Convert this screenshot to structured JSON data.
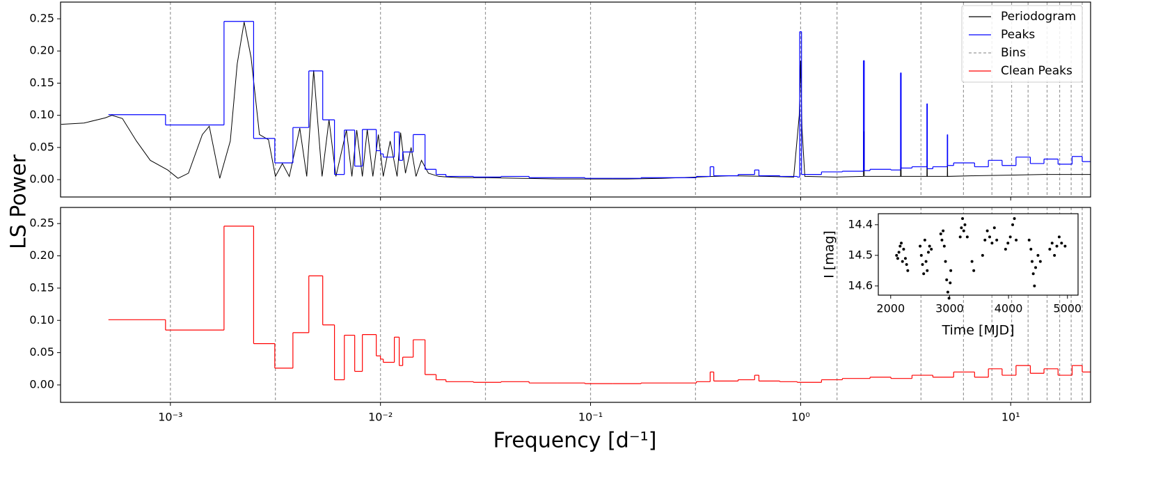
{
  "chart_data": [
    {
      "type": "line",
      "ylabel": "LS Power",
      "legend": "upper right",
      "ylim": [
        -0.027,
        0.276
      ],
      "yticks": [
        {
          "value": 0,
          "label": "0.00"
        },
        {
          "value": 0.05,
          "label": "0.05"
        },
        {
          "value": 0.1,
          "label": "0.10"
        },
        {
          "value": 0.15,
          "label": "0.15"
        },
        {
          "value": 0.2,
          "label": "0.20"
        },
        {
          "value": 0.25,
          "label": "0.25"
        }
      ],
      "bins": {
        "name": "Bins",
        "color": "#999999",
        "values": [
          0.001,
          0.00316,
          0.01,
          0.0316,
          0.1,
          0.316,
          1.0,
          1.49,
          3.74,
          5.96,
          8.14,
          10.1,
          12.1,
          14.9,
          17.1,
          19.4,
          21.9
        ]
      },
      "series": [
        {
          "name": "Periodogram",
          "color": "#000000",
          "x": [
            0.000302,
            0.000388,
            0.000489,
            0.000527,
            0.000591,
            0.000689,
            0.000802,
            0.000971,
            0.001087,
            0.001219,
            0.001419,
            0.001531,
            0.001718,
            0.001928,
            0.00208,
            0.002244,
            0.002421,
            0.002654,
            0.002931,
            0.003162,
            0.003412,
            0.003681,
            0.00413,
            0.004457,
            0.004808,
            0.005272,
            0.005688,
            0.006137,
            0.006887,
            0.00731,
            0.00771,
            0.0082,
            0.00865,
            0.0092,
            0.00977,
            0.01031,
            0.01112,
            0.012,
            0.01247,
            0.01315,
            0.01399,
            0.01476,
            0.01567,
            0.01691,
            0.01897,
            0.0238,
            0.0324,
            0.0473,
            0.0693,
            0.1016,
            0.1486,
            0.2178,
            0.3187,
            0.4667,
            0.6829,
            0.927,
            0.985,
            1.0,
            1.015,
            1.047,
            1.464,
            1.99,
            2.0,
            2.01,
            2.99,
            3.0,
            3.01,
            3.99,
            4.0,
            4.01,
            4.99,
            5.0,
            5.01,
            6.73,
            9.85,
            14.4,
            24.0
          ],
          "values": [
            0.086,
            0.088,
            0.096,
            0.1,
            0.095,
            0.06,
            0.03,
            0.015,
            0.002,
            0.01,
            0.07,
            0.083,
            0.002,
            0.06,
            0.18,
            0.245,
            0.19,
            0.07,
            0.062,
            0.005,
            0.025,
            0.005,
            0.08,
            0.005,
            0.17,
            0.005,
            0.093,
            0.005,
            0.077,
            0.005,
            0.077,
            0.005,
            0.078,
            0.005,
            0.07,
            0.005,
            0.06,
            0.005,
            0.073,
            0.01,
            0.05,
            0.005,
            0.03,
            0.01,
            0.005,
            0.003,
            0.003,
            0.002,
            0.001,
            0.001,
            0.001,
            0.002,
            0.004,
            0.006,
            0.005,
            0.004,
            0.1,
            0.185,
            0.08,
            0.005,
            0.004,
            0.005,
            0.075,
            0.005,
            0.005,
            0.12,
            0.005,
            0.005,
            0.055,
            0.005,
            0.005,
            0.03,
            0.005,
            0.006,
            0.007,
            0.008,
            0.008
          ]
        },
        {
          "name": "Peaks",
          "color": "#0000ff",
          "edges": [
            0.000507,
            0.000948,
            0.0018,
            0.00249,
            0.00314,
            0.00383,
            0.00456,
            0.00531,
            0.00604,
            0.00673,
            0.00754,
            0.0082,
            0.00955,
            0.01,
            0.01031,
            0.01164,
            0.01228,
            0.01276,
            0.01432,
            0.0163,
            0.0184,
            0.0205,
            0.0277,
            0.0375,
            0.051,
            0.0693,
            0.094,
            0.128,
            0.174,
            0.235,
            0.319,
            0.371,
            0.386,
            0.504,
            0.604,
            0.633,
            0.796,
            0.963,
            0.99,
            1.01,
            1.257,
            1.58,
            1.99,
            2.01,
            2.14,
            2.69,
            2.99,
            3.01,
            3.39,
            3.99,
            4.01,
            4.26,
            4.99,
            5.01,
            5.35,
            6.73,
            7.83,
            9.1,
            10.6,
            12.4,
            14.4,
            16.8,
            19.6,
            21.9,
            24.0
          ],
          "values": [
            0.101,
            0.085,
            0.246,
            0.064,
            0.026,
            0.081,
            0.169,
            0.093,
            0.008,
            0.077,
            0.021,
            0.078,
            0.045,
            0.04,
            0.035,
            0.074,
            0.03,
            0.043,
            0.07,
            0.016,
            0.008,
            0.005,
            0.004,
            0.005,
            0.003,
            0.003,
            0.002,
            0.002,
            0.003,
            0.003,
            0.005,
            0.02,
            0.006,
            0.008,
            0.015,
            0.006,
            0.005,
            0.004,
            0.23,
            0.008,
            0.012,
            0.013,
            0.185,
            0.014,
            0.016,
            0.015,
            0.166,
            0.018,
            0.02,
            0.118,
            0.017,
            0.02,
            0.07,
            0.022,
            0.026,
            0.02,
            0.03,
            0.022,
            0.035,
            0.025,
            0.032,
            0.024,
            0.036,
            0.028
          ]
        }
      ]
    },
    {
      "type": "line",
      "xlabel": "Frequency [d⁻¹]",
      "log_x": true,
      "xlim": [
        0.0003,
        24
      ],
      "xticks": [
        {
          "value": 0.001,
          "label": "10⁻³"
        },
        {
          "value": 0.01,
          "label": "10⁻²"
        },
        {
          "value": 0.1,
          "label": "10⁻¹"
        },
        {
          "value": 1,
          "label": "10⁰"
        },
        {
          "value": 10,
          "label": "10¹"
        }
      ],
      "ylim": [
        -0.027,
        0.275
      ],
      "yticks": [
        {
          "value": 0,
          "label": "0.00"
        },
        {
          "value": 0.05,
          "label": "0.05"
        },
        {
          "value": 0.1,
          "label": "0.10"
        },
        {
          "value": 0.15,
          "label": "0.15"
        },
        {
          "value": 0.2,
          "label": "0.20"
        },
        {
          "value": 0.25,
          "label": "0.25"
        }
      ],
      "series": [
        {
          "name": "Clean Peaks",
          "color": "#ff0000",
          "edges": [
            0.000507,
            0.000948,
            0.0018,
            0.00249,
            0.00314,
            0.00383,
            0.00456,
            0.00531,
            0.00604,
            0.00673,
            0.00754,
            0.0082,
            0.00955,
            0.01,
            0.01031,
            0.01164,
            0.01228,
            0.01276,
            0.01432,
            0.0163,
            0.0184,
            0.0205,
            0.0277,
            0.0375,
            0.051,
            0.0693,
            0.094,
            0.128,
            0.174,
            0.235,
            0.319,
            0.371,
            0.386,
            0.504,
            0.604,
            0.633,
            0.796,
            0.963,
            1.257,
            1.58,
            2.14,
            2.69,
            3.39,
            4.26,
            5.35,
            6.73,
            7.83,
            9.1,
            10.6,
            12.4,
            14.4,
            16.8,
            19.6,
            21.9,
            24.0
          ],
          "values": [
            0.101,
            0.085,
            0.246,
            0.064,
            0.026,
            0.081,
            0.169,
            0.093,
            0.008,
            0.077,
            0.021,
            0.078,
            0.045,
            0.04,
            0.035,
            0.074,
            0.03,
            0.043,
            0.07,
            0.016,
            0.008,
            0.005,
            0.004,
            0.005,
            0.003,
            0.003,
            0.002,
            0.002,
            0.003,
            0.003,
            0.005,
            0.02,
            0.006,
            0.008,
            0.015,
            0.006,
            0.005,
            0.004,
            0.008,
            0.01,
            0.012,
            0.01,
            0.015,
            0.012,
            0.02,
            0.012,
            0.025,
            0.015,
            0.03,
            0.018,
            0.025,
            0.015,
            0.03,
            0.02
          ]
        }
      ]
    },
    {
      "type": "scatter",
      "xlabel": "Time [MJD]",
      "ylabel": "I [mag]",
      "color": "#000000",
      "xlim": [
        1790,
        5180
      ],
      "ylim": [
        14.63,
        14.364
      ],
      "xticks": [
        2000,
        3000,
        4000,
        5000
      ],
      "yticks": [
        14.4,
        14.5,
        14.6
      ],
      "x": [
        2100,
        2120,
        2140,
        2160,
        2180,
        2200,
        2220,
        2250,
        2270,
        2290,
        2500,
        2520,
        2540,
        2560,
        2580,
        2600,
        2620,
        2640,
        2660,
        2690,
        2850,
        2870,
        2890,
        2910,
        2930,
        2950,
        2970,
        2990,
        3010,
        3020,
        3180,
        3200,
        3220,
        3240,
        3260,
        3300,
        3380,
        3410,
        3560,
        3600,
        3640,
        3680,
        3720,
        3760,
        3800,
        3950,
        3990,
        4030,
        4070,
        4100,
        4130,
        4350,
        4380,
        4400,
        4420,
        4440,
        4460,
        4500,
        4540,
        4700,
        4740,
        4780,
        4820,
        4860,
        4900,
        4960
      ],
      "values": [
        14.5,
        14.51,
        14.49,
        14.47,
        14.46,
        14.52,
        14.48,
        14.51,
        14.53,
        14.55,
        14.47,
        14.5,
        14.53,
        14.56,
        14.45,
        14.52,
        14.55,
        14.49,
        14.47,
        14.48,
        14.43,
        14.45,
        14.42,
        14.47,
        14.52,
        14.58,
        14.62,
        14.64,
        14.59,
        14.55,
        14.44,
        14.41,
        14.38,
        14.42,
        14.4,
        14.44,
        14.52,
        14.55,
        14.5,
        14.45,
        14.42,
        14.44,
        14.46,
        14.41,
        14.45,
        14.48,
        14.46,
        14.44,
        14.4,
        14.38,
        14.45,
        14.45,
        14.48,
        14.52,
        14.56,
        14.6,
        14.54,
        14.5,
        14.52,
        14.48,
        14.46,
        14.5,
        14.47,
        14.44,
        14.46,
        14.47
      ]
    }
  ]
}
